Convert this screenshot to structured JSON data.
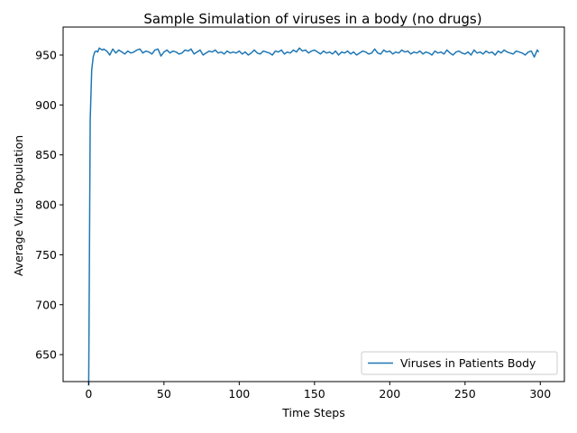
{
  "chart_data": {
    "type": "line",
    "title": "Sample Simulation of viruses in a body (no drugs)",
    "xlabel": "Time Steps",
    "ylabel": "Average Virus Population",
    "xlim": [
      -17,
      316
    ],
    "ylim": [
      623,
      978
    ],
    "xticks": [
      0,
      50,
      100,
      150,
      200,
      250,
      300
    ],
    "yticks": [
      650,
      700,
      750,
      800,
      850,
      900,
      950
    ],
    "legend_placement": "bottom-right",
    "grid": false,
    "series": [
      {
        "name": "Viruses in Patients Body",
        "color": "#1f77b4",
        "x": [
          0,
          1,
          2,
          3,
          4,
          5,
          6,
          7,
          8,
          9,
          10,
          12,
          14,
          16,
          18,
          20,
          22,
          24,
          26,
          28,
          30,
          32,
          34,
          36,
          38,
          40,
          42,
          44,
          46,
          48,
          50,
          52,
          54,
          56,
          58,
          60,
          62,
          64,
          66,
          68,
          70,
          72,
          74,
          76,
          78,
          80,
          82,
          84,
          86,
          88,
          90,
          92,
          94,
          96,
          98,
          100,
          102,
          104,
          106,
          108,
          110,
          112,
          114,
          116,
          118,
          120,
          122,
          124,
          126,
          128,
          130,
          132,
          134,
          136,
          138,
          140,
          142,
          144,
          146,
          148,
          150,
          152,
          154,
          156,
          158,
          160,
          162,
          164,
          166,
          168,
          170,
          172,
          174,
          176,
          178,
          180,
          182,
          184,
          186,
          188,
          190,
          192,
          194,
          196,
          198,
          200,
          202,
          204,
          206,
          208,
          210,
          212,
          214,
          216,
          218,
          220,
          222,
          224,
          226,
          228,
          230,
          232,
          234,
          236,
          238,
          240,
          242,
          244,
          246,
          248,
          250,
          252,
          254,
          256,
          258,
          260,
          262,
          264,
          266,
          268,
          270,
          272,
          274,
          276,
          278,
          280,
          282,
          284,
          286,
          288,
          290,
          292,
          294,
          296,
          298,
          299
        ],
        "values": [
          619,
          885,
          935,
          948,
          953,
          954,
          953,
          957,
          956,
          955,
          956,
          954,
          950,
          956,
          952,
          955,
          953,
          951,
          954,
          952,
          953,
          955,
          956,
          952,
          954,
          953,
          951,
          955,
          956,
          949,
          953,
          955,
          952,
          954,
          953,
          951,
          952,
          955,
          954,
          956,
          951,
          953,
          955,
          950,
          952,
          954,
          953,
          955,
          952,
          953,
          951,
          954,
          952,
          953,
          952,
          954,
          951,
          953,
          950,
          952,
          955,
          952,
          951,
          954,
          953,
          952,
          950,
          954,
          953,
          955,
          951,
          953,
          952,
          955,
          953,
          957,
          954,
          955,
          952,
          954,
          955,
          953,
          951,
          954,
          952,
          953,
          951,
          954,
          950,
          953,
          952,
          954,
          951,
          953,
          950,
          952,
          954,
          953,
          951,
          952,
          956,
          952,
          951,
          955,
          953,
          954,
          951,
          953,
          952,
          955,
          953,
          954,
          951,
          953,
          952,
          954,
          951,
          953,
          952,
          950,
          954,
          952,
          953,
          951,
          955,
          952,
          950,
          953,
          954,
          952,
          951,
          953,
          950,
          955,
          952,
          953,
          951,
          954,
          952,
          953,
          950,
          954,
          952,
          955,
          953,
          952,
          951,
          954,
          953,
          952,
          950,
          953,
          954,
          948,
          955,
          953
        ]
      }
    ]
  }
}
